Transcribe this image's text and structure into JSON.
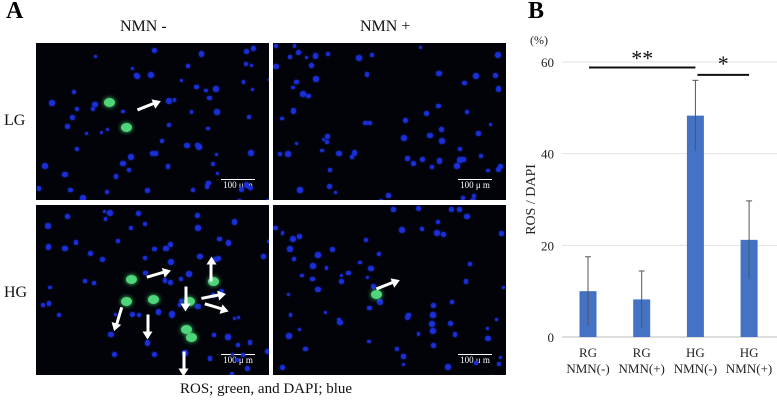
{
  "panel_a": {
    "letter": "A",
    "col_headers": [
      "NMN -",
      "NMN +"
    ],
    "row_headers": [
      "LG",
      "HG"
    ],
    "scale_bar": "100 μ m",
    "caption": "ROS; green,  and DAPI; blue",
    "colors": {
      "nuclei": "#1a2fd8",
      "ros": "#4fd67a",
      "background": "#020308"
    }
  },
  "panel_b": {
    "letter": "B"
  },
  "chart_data": {
    "type": "bar",
    "categories": [
      [
        "RG",
        "NMN(-)"
      ],
      [
        "RG",
        "NMN(+)"
      ],
      [
        "HG",
        "NMN(-)"
      ],
      [
        "HG",
        "NMN(+)"
      ]
    ],
    "values": [
      10.0,
      8.2,
      48.3,
      21.2
    ],
    "errors": [
      7.5,
      6.2,
      7.7,
      8.5
    ],
    "ylabel": "ROS / DAPI",
    "yunit": "(%)",
    "ylim": [
      0,
      60
    ],
    "yticks": [
      0,
      20,
      40,
      60
    ],
    "grid": true,
    "bar_color": "#4472c4",
    "significance": [
      {
        "from": 0,
        "to": 2,
        "label": "**"
      },
      {
        "from": 2,
        "to": 3,
        "label": "*"
      }
    ]
  }
}
